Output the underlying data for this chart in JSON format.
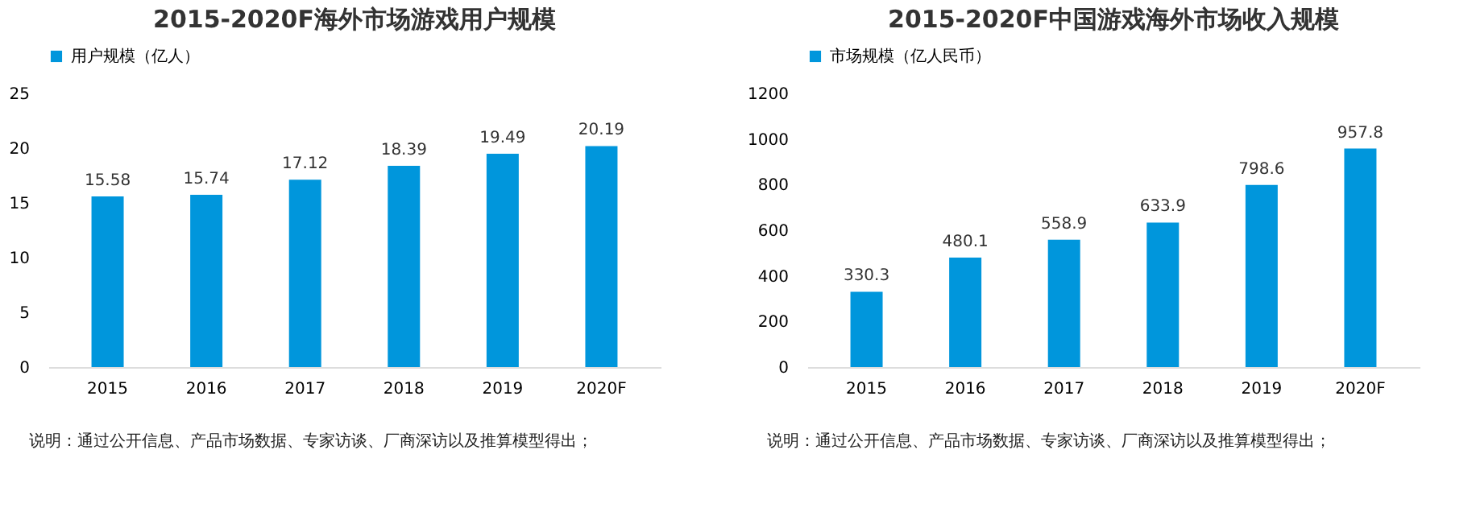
{
  "chart_data": [
    {
      "type": "bar",
      "title": "2015-2020F海外市场游戏用户规模",
      "categories": [
        "2015",
        "2016",
        "2017",
        "2018",
        "2019",
        "2020F"
      ],
      "series": [
        {
          "name": "用户规模（亿人）",
          "color": "#0096dc",
          "values": [
            15.58,
            15.74,
            17.12,
            18.39,
            19.49,
            20.19
          ]
        }
      ],
      "ylim": [
        0,
        25
      ],
      "yticks": [
        0,
        5,
        10,
        15,
        20,
        25
      ],
      "data_labels": true,
      "legend": "top",
      "grid": false,
      "annotations": [
        "说明：通过公开信息、产品市场数据、专家访谈、厂商深访以及推算模型得出；"
      ]
    },
    {
      "type": "bar",
      "title": "2015-2020F中国游戏海外市场收入规模",
      "categories": [
        "2015",
        "2016",
        "2017",
        "2018",
        "2019",
        "2020F"
      ],
      "series": [
        {
          "name": "市场规模（亿人民币）",
          "color": "#0096dc",
          "values": [
            330.3,
            480.1,
            558.9,
            633.9,
            798.6,
            957.8
          ]
        }
      ],
      "ylim": [
        0,
        1200
      ],
      "yticks": [
        0,
        200,
        400,
        600,
        800,
        1000,
        1200
      ],
      "data_labels": true,
      "legend": "top",
      "grid": false,
      "annotations": [
        "说明：通过公开信息、产品市场数据、专家访谈、厂商深访以及推算模型得出；"
      ]
    }
  ]
}
